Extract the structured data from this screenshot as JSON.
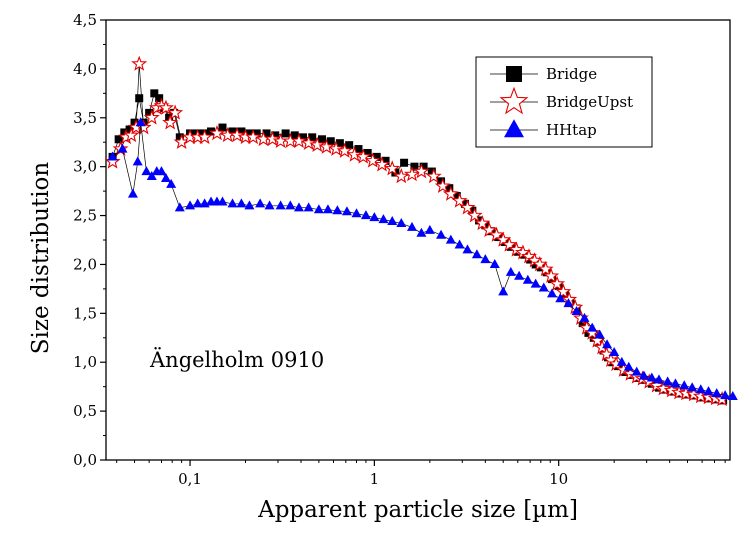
{
  "chart_data": {
    "type": "scatter",
    "title": "",
    "xlabel": "Apparent particle size [µm]",
    "ylabel": "Size distribution",
    "x_scale": "log",
    "xlim": [
      0.035,
      85
    ],
    "ylim": [
      0,
      4.5
    ],
    "grid": false,
    "legend_position": "top-right",
    "x_ticks": [
      {
        "value": 0.1,
        "label": "0,1"
      },
      {
        "value": 1,
        "label": "1"
      },
      {
        "value": 10,
        "label": "10"
      }
    ],
    "y_ticks": [
      {
        "value": 0,
        "label": "0,0"
      },
      {
        "value": 0.5,
        "label": "0,5"
      },
      {
        "value": 1,
        "label": "1,0"
      },
      {
        "value": 1.5,
        "label": "1,5"
      },
      {
        "value": 2,
        "label": "2,0"
      },
      {
        "value": 2.5,
        "label": "2,5"
      },
      {
        "value": 3,
        "label": "3,0"
      },
      {
        "value": 3.5,
        "label": "3,5"
      },
      {
        "value": 4,
        "label": "4,0"
      },
      {
        "value": 4.5,
        "label": "4,5"
      }
    ],
    "annotation": "Ängelholm 0910",
    "series": [
      {
        "name": "Bridge",
        "marker": "square",
        "color": "#000000",
        "points": [
          [
            0.038,
            3.1
          ],
          [
            0.041,
            3.28
          ],
          [
            0.044,
            3.35
          ],
          [
            0.047,
            3.38
          ],
          [
            0.05,
            3.45
          ],
          [
            0.053,
            3.7
          ],
          [
            0.056,
            3.45
          ],
          [
            0.06,
            3.55
          ],
          [
            0.064,
            3.75
          ],
          [
            0.068,
            3.7
          ],
          [
            0.072,
            3.6
          ],
          [
            0.077,
            3.5
          ],
          [
            0.082,
            3.55
          ],
          [
            0.088,
            3.3
          ],
          [
            0.1,
            3.34
          ],
          [
            0.11,
            3.34
          ],
          [
            0.12,
            3.34
          ],
          [
            0.13,
            3.36
          ],
          [
            0.15,
            3.4
          ],
          [
            0.17,
            3.36
          ],
          [
            0.19,
            3.36
          ],
          [
            0.21,
            3.34
          ],
          [
            0.23,
            3.34
          ],
          [
            0.26,
            3.34
          ],
          [
            0.29,
            3.32
          ],
          [
            0.33,
            3.34
          ],
          [
            0.37,
            3.32
          ],
          [
            0.41,
            3.3
          ],
          [
            0.46,
            3.3
          ],
          [
            0.52,
            3.28
          ],
          [
            0.58,
            3.26
          ],
          [
            0.65,
            3.24
          ],
          [
            0.73,
            3.22
          ],
          [
            0.82,
            3.18
          ],
          [
            0.92,
            3.14
          ],
          [
            1.03,
            3.1
          ],
          [
            1.15,
            3.06
          ],
          [
            1.3,
            2.94
          ],
          [
            1.45,
            3.04
          ],
          [
            1.65,
            3.0
          ],
          [
            1.85,
            3.0
          ],
          [
            2.05,
            2.95
          ],
          [
            2.3,
            2.85
          ],
          [
            2.55,
            2.78
          ],
          [
            2.8,
            2.7
          ],
          [
            3.1,
            2.62
          ],
          [
            3.4,
            2.55
          ],
          [
            3.7,
            2.45
          ],
          [
            4.0,
            2.4
          ],
          [
            4.3,
            2.34
          ],
          [
            4.7,
            2.28
          ],
          [
            5.1,
            2.23
          ],
          [
            5.5,
            2.18
          ],
          [
            6.0,
            2.13
          ],
          [
            6.5,
            2.1
          ],
          [
            7.0,
            2.05
          ],
          [
            7.5,
            2.0
          ],
          [
            8.0,
            1.97
          ],
          [
            8.6,
            1.92
          ],
          [
            9.2,
            1.85
          ],
          [
            10,
            1.78
          ],
          [
            10.8,
            1.7
          ],
          [
            11.6,
            1.62
          ],
          [
            12.5,
            1.55
          ],
          [
            13.5,
            1.4
          ],
          [
            14.5,
            1.3
          ],
          [
            15.5,
            1.25
          ],
          [
            16.5,
            1.2
          ],
          [
            17.5,
            1.12
          ],
          [
            18.5,
            1.05
          ],
          [
            19.5,
            1.0
          ],
          [
            21,
            0.96
          ],
          [
            23,
            0.9
          ],
          [
            25,
            0.87
          ],
          [
            27,
            0.84
          ],
          [
            29,
            0.82
          ],
          [
            32,
            0.78
          ],
          [
            35,
            0.74
          ],
          [
            38,
            0.72
          ],
          [
            42,
            0.7
          ],
          [
            46,
            0.68
          ],
          [
            50,
            0.67
          ],
          [
            55,
            0.66
          ],
          [
            60,
            0.64
          ],
          [
            66,
            0.63
          ],
          [
            72,
            0.62
          ],
          [
            78,
            0.61
          ]
        ]
      },
      {
        "name": "BridgeUpst",
        "marker": "star",
        "color": "#e60000",
        "points": [
          [
            0.038,
            3.05
          ],
          [
            0.042,
            3.18
          ],
          [
            0.045,
            3.3
          ],
          [
            0.048,
            3.32
          ],
          [
            0.051,
            3.4
          ],
          [
            0.053,
            4.05
          ],
          [
            0.056,
            3.4
          ],
          [
            0.062,
            3.5
          ],
          [
            0.066,
            3.6
          ],
          [
            0.07,
            3.62
          ],
          [
            0.074,
            3.6
          ],
          [
            0.078,
            3.45
          ],
          [
            0.083,
            3.55
          ],
          [
            0.09,
            3.25
          ],
          [
            0.1,
            3.3
          ],
          [
            0.11,
            3.3
          ],
          [
            0.12,
            3.3
          ],
          [
            0.14,
            3.34
          ],
          [
            0.16,
            3.32
          ],
          [
            0.18,
            3.32
          ],
          [
            0.2,
            3.3
          ],
          [
            0.22,
            3.3
          ],
          [
            0.25,
            3.28
          ],
          [
            0.28,
            3.28
          ],
          [
            0.31,
            3.26
          ],
          [
            0.35,
            3.26
          ],
          [
            0.39,
            3.26
          ],
          [
            0.44,
            3.24
          ],
          [
            0.49,
            3.22
          ],
          [
            0.55,
            3.2
          ],
          [
            0.62,
            3.18
          ],
          [
            0.69,
            3.16
          ],
          [
            0.78,
            3.12
          ],
          [
            0.87,
            3.1
          ],
          [
            0.98,
            3.06
          ],
          [
            1.1,
            3.02
          ],
          [
            1.25,
            2.98
          ],
          [
            1.4,
            2.9
          ],
          [
            1.6,
            2.92
          ],
          [
            1.8,
            2.95
          ],
          [
            2.1,
            2.9
          ],
          [
            2.35,
            2.8
          ],
          [
            2.6,
            2.72
          ],
          [
            2.9,
            2.65
          ],
          [
            3.2,
            2.58
          ],
          [
            3.5,
            2.5
          ],
          [
            3.85,
            2.42
          ],
          [
            4.2,
            2.35
          ],
          [
            4.6,
            2.3
          ],
          [
            5.0,
            2.25
          ],
          [
            5.4,
            2.2
          ],
          [
            5.9,
            2.15
          ],
          [
            6.4,
            2.12
          ],
          [
            6.9,
            2.08
          ],
          [
            7.4,
            2.04
          ],
          [
            7.9,
            2.0
          ],
          [
            8.5,
            1.95
          ],
          [
            9.1,
            1.88
          ],
          [
            9.8,
            1.8
          ],
          [
            10.6,
            1.72
          ],
          [
            11.4,
            1.64
          ],
          [
            12.3,
            1.56
          ],
          [
            13.2,
            1.45
          ],
          [
            14.2,
            1.35
          ],
          [
            15.2,
            1.3
          ],
          [
            16.2,
            1.22
          ],
          [
            17.2,
            1.15
          ],
          [
            18.2,
            1.08
          ],
          [
            19.2,
            1.02
          ],
          [
            20.5,
            0.98
          ],
          [
            22.5,
            0.92
          ],
          [
            24.5,
            0.88
          ],
          [
            26.5,
            0.85
          ],
          [
            28.5,
            0.83
          ],
          [
            31,
            0.8
          ],
          [
            34,
            0.76
          ],
          [
            37,
            0.73
          ],
          [
            41,
            0.71
          ],
          [
            45,
            0.69
          ],
          [
            49,
            0.68
          ],
          [
            54,
            0.67
          ],
          [
            59,
            0.65
          ],
          [
            65,
            0.64
          ],
          [
            71,
            0.63
          ],
          [
            77,
            0.62
          ]
        ]
      },
      {
        "name": "HHtap",
        "marker": "triangle",
        "color": "#0000ff",
        "points": [
          [
            0.038,
            3.1
          ],
          [
            0.043,
            3.18
          ],
          [
            0.049,
            2.72
          ],
          [
            0.052,
            3.05
          ],
          [
            0.054,
            3.45
          ],
          [
            0.058,
            2.95
          ],
          [
            0.062,
            2.9
          ],
          [
            0.066,
            2.95
          ],
          [
            0.07,
            2.95
          ],
          [
            0.074,
            2.88
          ],
          [
            0.079,
            2.82
          ],
          [
            0.088,
            2.58
          ],
          [
            0.1,
            2.6
          ],
          [
            0.11,
            2.62
          ],
          [
            0.12,
            2.62
          ],
          [
            0.13,
            2.64
          ],
          [
            0.14,
            2.64
          ],
          [
            0.15,
            2.64
          ],
          [
            0.17,
            2.62
          ],
          [
            0.19,
            2.62
          ],
          [
            0.21,
            2.6
          ],
          [
            0.24,
            2.62
          ],
          [
            0.27,
            2.6
          ],
          [
            0.31,
            2.6
          ],
          [
            0.35,
            2.6
          ],
          [
            0.39,
            2.58
          ],
          [
            0.44,
            2.58
          ],
          [
            0.5,
            2.56
          ],
          [
            0.56,
            2.56
          ],
          [
            0.63,
            2.55
          ],
          [
            0.71,
            2.54
          ],
          [
            0.8,
            2.52
          ],
          [
            0.9,
            2.5
          ],
          [
            1.0,
            2.48
          ],
          [
            1.12,
            2.46
          ],
          [
            1.25,
            2.44
          ],
          [
            1.4,
            2.42
          ],
          [
            1.6,
            2.38
          ],
          [
            1.8,
            2.32
          ],
          [
            2.0,
            2.35
          ],
          [
            2.3,
            2.3
          ],
          [
            2.6,
            2.25
          ],
          [
            2.9,
            2.2
          ],
          [
            3.2,
            2.15
          ],
          [
            3.6,
            2.1
          ],
          [
            4.0,
            2.05
          ],
          [
            4.5,
            2.0
          ],
          [
            5.0,
            1.72
          ],
          [
            5.5,
            1.92
          ],
          [
            6.1,
            1.88
          ],
          [
            6.8,
            1.84
          ],
          [
            7.5,
            1.8
          ],
          [
            8.3,
            1.76
          ],
          [
            9.2,
            1.7
          ],
          [
            10.2,
            1.65
          ],
          [
            11.3,
            1.6
          ],
          [
            12.5,
            1.52
          ],
          [
            13.8,
            1.45
          ],
          [
            15.2,
            1.35
          ],
          [
            16.7,
            1.28
          ],
          [
            18.3,
            1.18
          ],
          [
            20,
            1.1
          ],
          [
            22,
            1.0
          ],
          [
            24,
            0.95
          ],
          [
            26.5,
            0.9
          ],
          [
            29,
            0.86
          ],
          [
            32,
            0.84
          ],
          [
            35,
            0.82
          ],
          [
            39,
            0.8
          ],
          [
            43,
            0.78
          ],
          [
            48,
            0.76
          ],
          [
            53,
            0.74
          ],
          [
            59,
            0.72
          ],
          [
            65,
            0.7
          ],
          [
            72,
            0.68
          ],
          [
            80,
            0.66
          ],
          [
            88,
            0.65
          ]
        ]
      }
    ]
  }
}
